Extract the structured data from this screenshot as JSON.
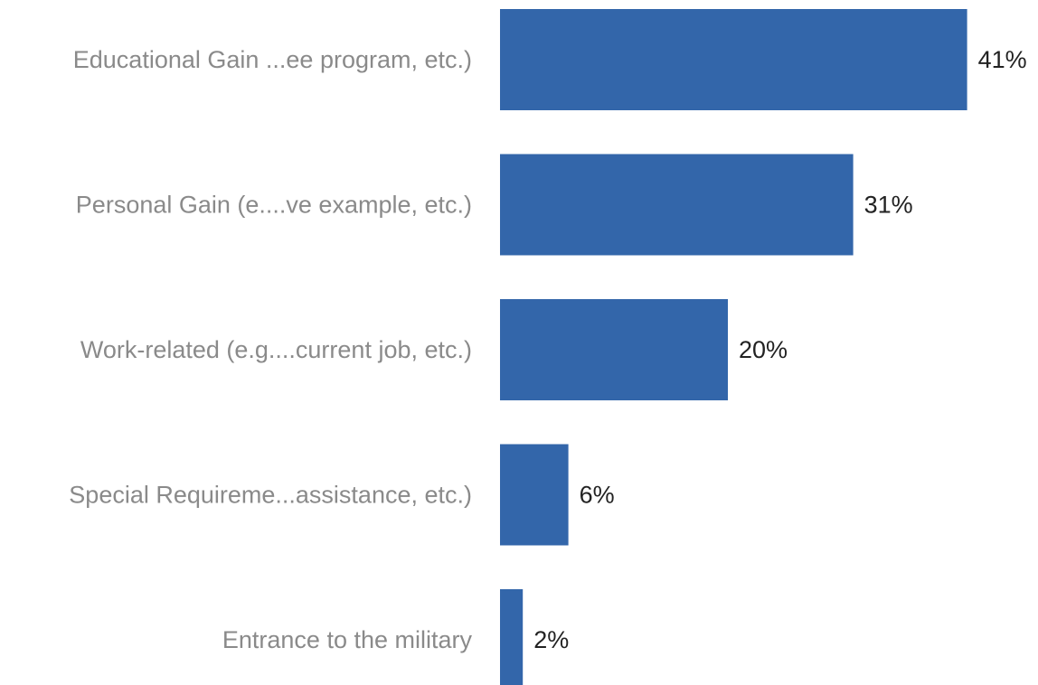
{
  "chart_data": {
    "type": "bar",
    "orientation": "horizontal",
    "categories": [
      "Educational Gain ...ee program, etc.)",
      "Personal Gain (e....ve example, etc.)",
      "Work-related (e.g....current job, etc.)",
      "Special Requireme...assistance, etc.)",
      "Entrance to the military"
    ],
    "values": [
      41,
      31,
      20,
      6,
      2
    ],
    "value_labels": [
      "41%",
      "31%",
      "20%",
      "6%",
      "2%"
    ],
    "unit": "%",
    "bar_color": "#3366aa",
    "grid": false,
    "legend": "none"
  }
}
